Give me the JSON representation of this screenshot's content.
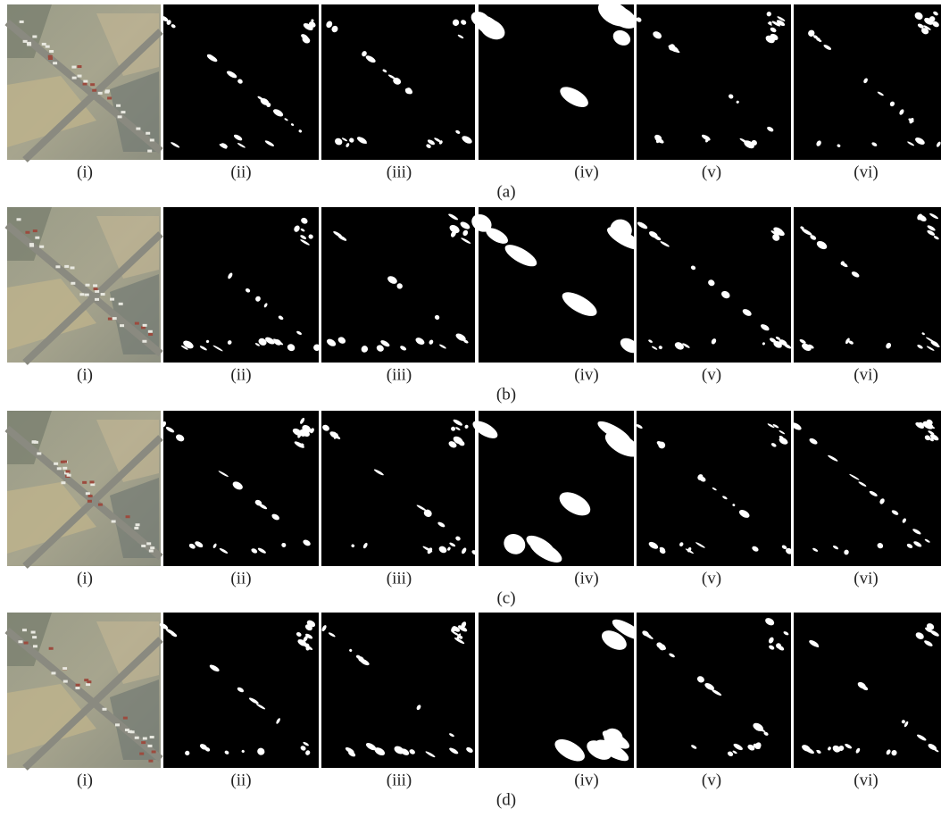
{
  "figure": {
    "rows": [
      {
        "caption": "(a)",
        "panels": [
          "(i)",
          "(ii)",
          "(iii)",
          "(iv)",
          "(v)",
          "(vi)"
        ]
      },
      {
        "caption": "(b)",
        "panels": [
          "(i)",
          "(ii)",
          "(iii)",
          "(iv)",
          "(v)",
          "(vi)"
        ]
      },
      {
        "caption": "(c)",
        "panels": [
          "(i)",
          "(ii)",
          "(iii)",
          "(iv)",
          "(v)",
          "(vi)"
        ]
      },
      {
        "caption": "(d)",
        "panels": [
          "(i)",
          "(ii)",
          "(iii)",
          "(iv)",
          "(v)",
          "(vi)"
        ]
      }
    ]
  }
}
